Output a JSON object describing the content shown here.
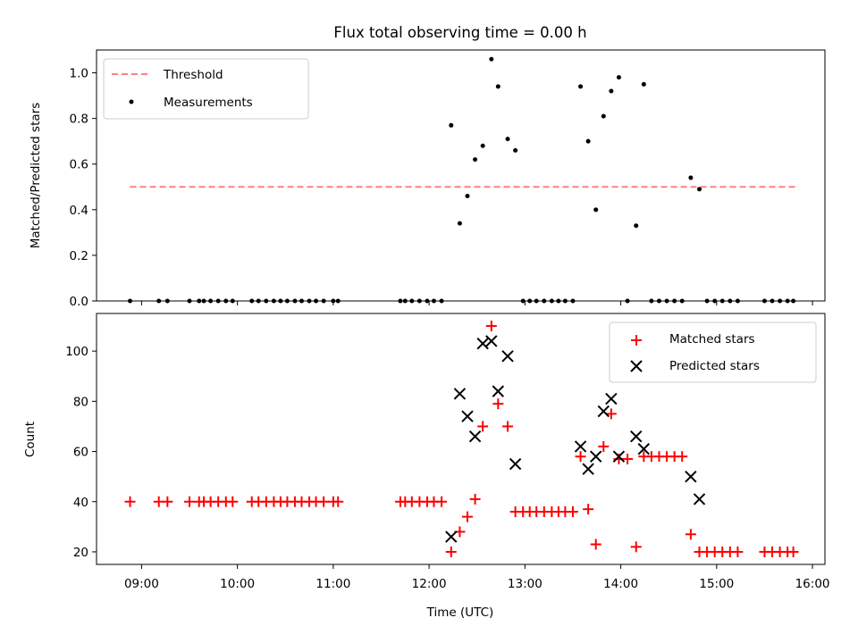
{
  "chart_data": [
    {
      "type": "scatter",
      "title": "Flux total observing time = 0.00 h",
      "xlabel": "",
      "ylabel": "Matched/Predicted stars",
      "ylim": [
        0,
        1.1
      ],
      "yticks": [
        "0.0",
        "0.2",
        "0.4",
        "0.6",
        "0.8",
        "1.0"
      ],
      "xlim": [
        8.53,
        16.13
      ],
      "grid": false,
      "legend_position": "top-left",
      "threshold": {
        "name": "Threshold",
        "value": 0.5,
        "color": "#ff7f7f",
        "style": "dashed",
        "x": [
          8.88,
          15.82
        ]
      },
      "series": [
        {
          "name": "Measurements",
          "color": "#000000",
          "marker": "dot",
          "x": [
            8.88,
            9.18,
            9.27,
            9.5,
            9.6,
            9.65,
            9.72,
            9.8,
            9.88,
            9.95,
            10.15,
            10.22,
            10.3,
            10.38,
            10.45,
            10.52,
            10.6,
            10.67,
            10.75,
            10.82,
            10.9,
            11.0,
            11.05,
            11.7,
            11.75,
            11.82,
            11.9,
            11.98,
            12.05,
            12.13,
            12.23,
            12.32,
            12.4,
            12.48,
            12.56,
            12.65,
            12.72,
            12.82,
            12.9,
            12.98,
            13.05,
            13.12,
            13.2,
            13.28,
            13.35,
            13.42,
            13.5,
            13.58,
            13.66,
            13.74,
            13.82,
            13.9,
            13.98,
            14.07,
            14.16,
            14.24,
            14.32,
            14.4,
            14.48,
            14.56,
            14.64,
            14.73,
            14.82,
            14.9,
            14.98,
            15.06,
            15.14,
            15.22,
            15.5,
            15.58,
            15.66,
            15.74,
            15.8
          ],
          "values": [
            0,
            0,
            0,
            0,
            0,
            0,
            0,
            0,
            0,
            0,
            0,
            0,
            0,
            0,
            0,
            0,
            0,
            0,
            0,
            0,
            0,
            0,
            0,
            0,
            0,
            0,
            0,
            0,
            0,
            0,
            0.77,
            0.34,
            0.46,
            0.62,
            0.68,
            1.06,
            0.94,
            0.71,
            0.66,
            0,
            0,
            0,
            0,
            0,
            0,
            0,
            0,
            0.94,
            0.7,
            0.4,
            0.81,
            0.92,
            0.98,
            0,
            0.33,
            0.95,
            0,
            0,
            0,
            0,
            0,
            0.54,
            0.49,
            0,
            0,
            0,
            0,
            0,
            0,
            0,
            0,
            0,
            0
          ]
        }
      ]
    },
    {
      "type": "scatter",
      "title": "",
      "xlabel": "Time (UTC)",
      "ylabel": "Count",
      "ylim": [
        15,
        115
      ],
      "yticks": [
        "20",
        "40",
        "60",
        "80",
        "100"
      ],
      "xlim": [
        8.53,
        16.13
      ],
      "xticks": [
        "09:00",
        "10:00",
        "11:00",
        "12:00",
        "13:00",
        "14:00",
        "15:00",
        "16:00"
      ],
      "grid": false,
      "legend_position": "top-right",
      "series": [
        {
          "name": "Matched stars",
          "color": "#ff0000",
          "marker": "plus",
          "x": [
            8.88,
            9.18,
            9.27,
            9.5,
            9.6,
            9.65,
            9.72,
            9.8,
            9.88,
            9.95,
            10.15,
            10.22,
            10.3,
            10.38,
            10.45,
            10.52,
            10.6,
            10.67,
            10.75,
            10.82,
            10.9,
            11.0,
            11.05,
            11.7,
            11.75,
            11.82,
            11.9,
            11.98,
            12.05,
            12.13,
            12.23,
            12.32,
            12.4,
            12.48,
            12.56,
            12.65,
            12.72,
            12.82,
            12.9,
            12.98,
            13.05,
            13.12,
            13.2,
            13.28,
            13.35,
            13.42,
            13.5,
            13.58,
            13.66,
            13.74,
            13.82,
            13.9,
            13.98,
            14.07,
            14.16,
            14.24,
            14.32,
            14.4,
            14.48,
            14.56,
            14.64,
            14.73,
            14.82,
            14.9,
            14.98,
            15.06,
            15.14,
            15.22,
            15.5,
            15.58,
            15.66,
            15.74,
            15.8
          ],
          "values": [
            40,
            40,
            40,
            40,
            40,
            40,
            40,
            40,
            40,
            40,
            40,
            40,
            40,
            40,
            40,
            40,
            40,
            40,
            40,
            40,
            40,
            40,
            40,
            40,
            40,
            40,
            40,
            40,
            40,
            40,
            20,
            28,
            34,
            41,
            70,
            110,
            79,
            70,
            36,
            36,
            36,
            36,
            36,
            36,
            36,
            36,
            36,
            58,
            37,
            23,
            62,
            75,
            57,
            57,
            22,
            58,
            58,
            58,
            58,
            58,
            58,
            27,
            20,
            20,
            20,
            20,
            20,
            20,
            20,
            20,
            20,
            20,
            20
          ]
        },
        {
          "name": "Predicted stars",
          "color": "#000000",
          "marker": "x",
          "x": [
            12.23,
            12.32,
            12.4,
            12.48,
            12.56,
            12.65,
            12.72,
            12.82,
            12.9,
            13.58,
            13.66,
            13.74,
            13.82,
            13.9,
            13.98,
            14.16,
            14.24,
            14.73,
            14.82
          ],
          "values": [
            26,
            83,
            74,
            66,
            103,
            104,
            84,
            98,
            55,
            62,
            53,
            58,
            76,
            81,
            58,
            66,
            61,
            50,
            41
          ]
        }
      ]
    }
  ]
}
